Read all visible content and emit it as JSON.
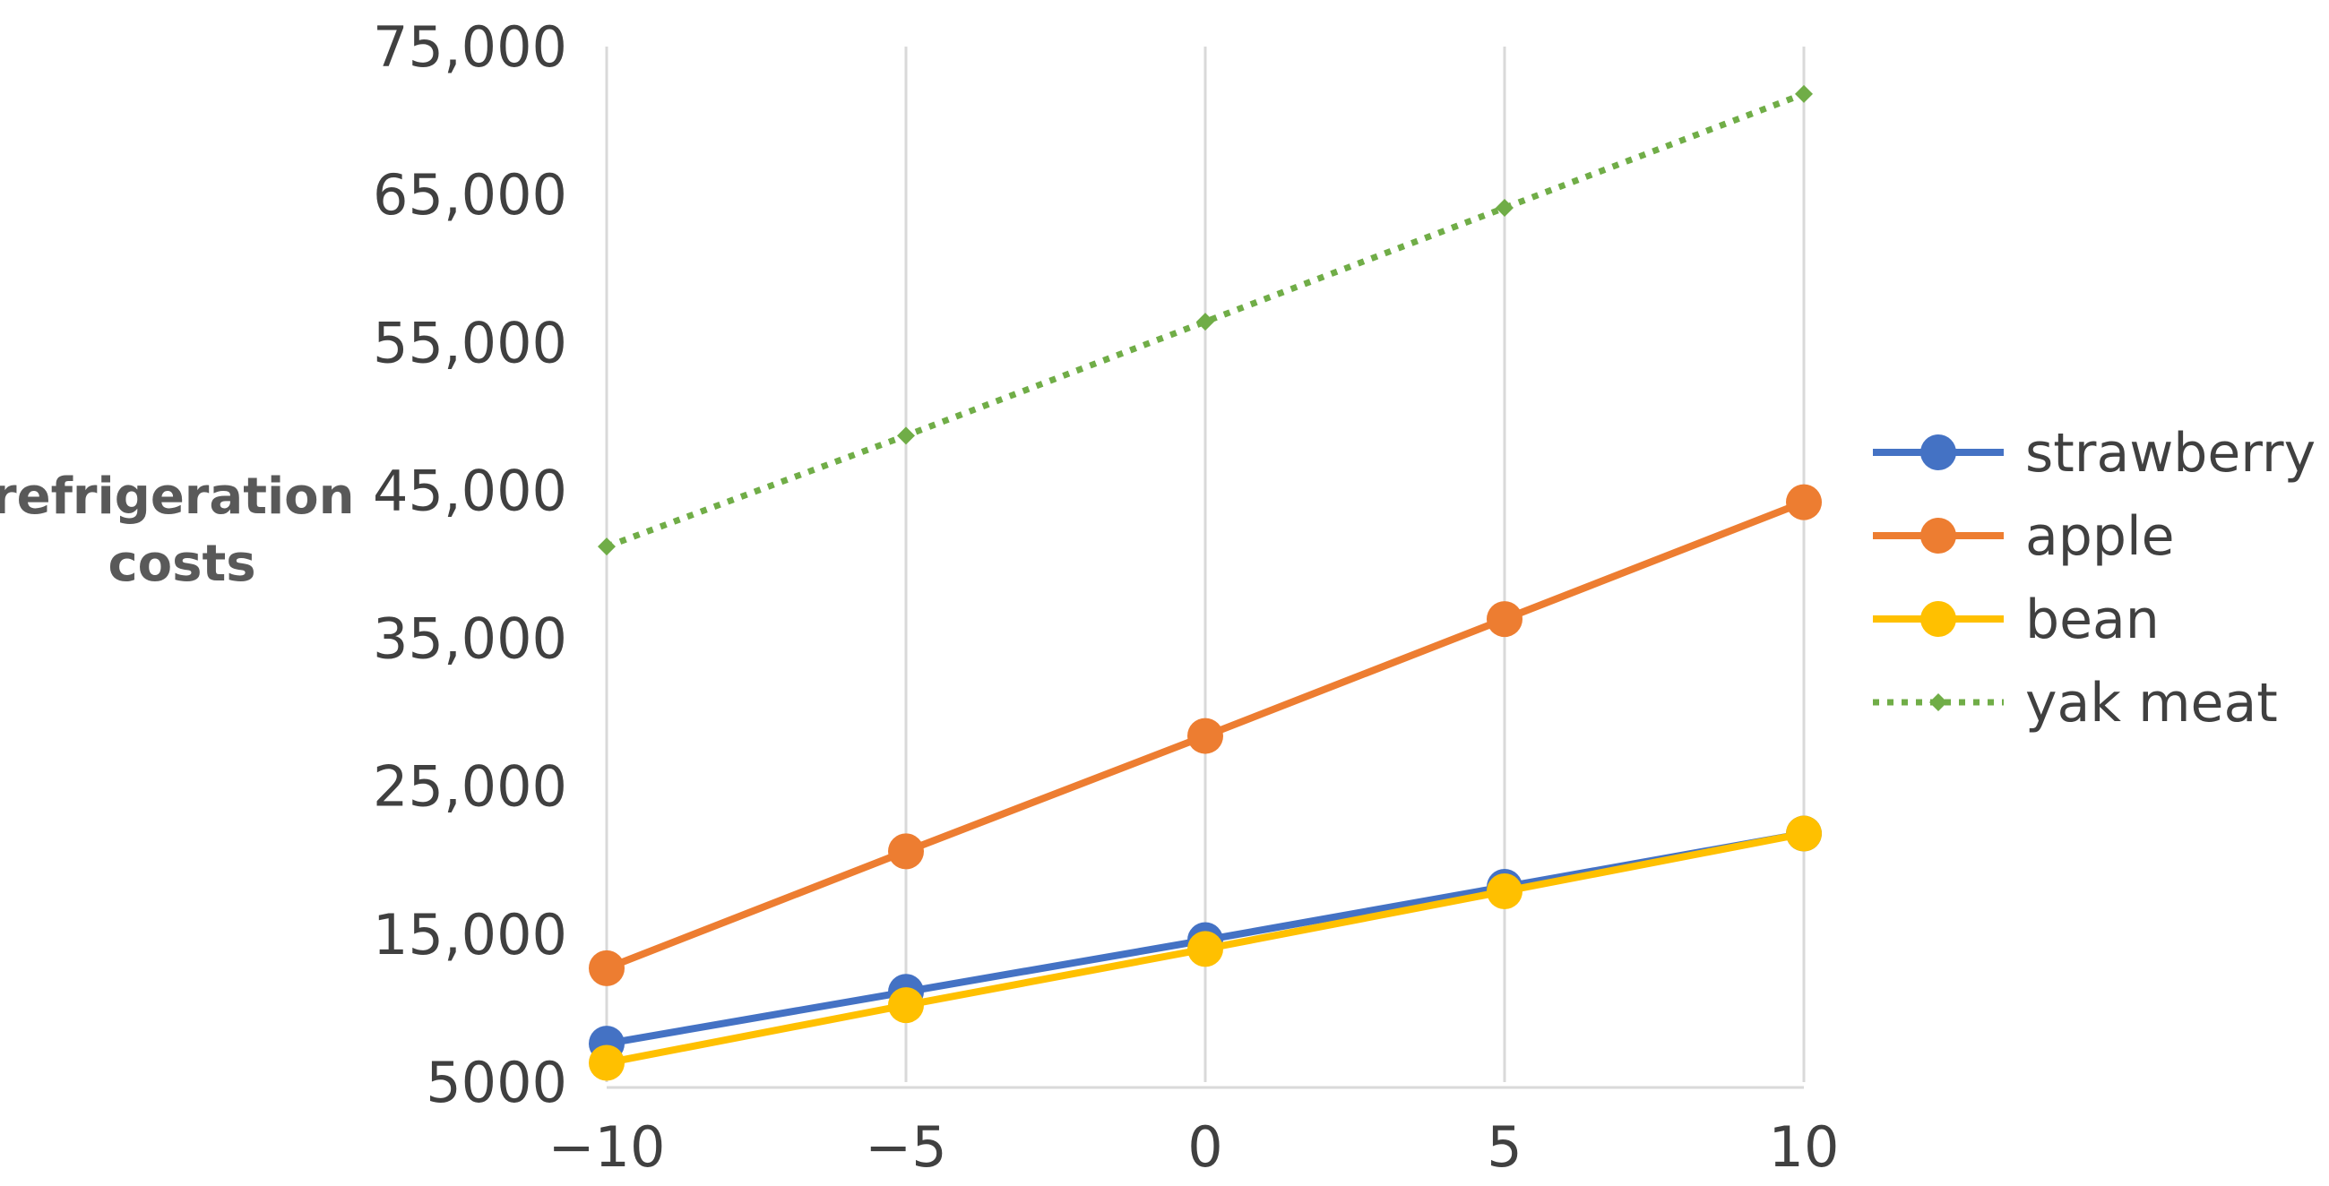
{
  "chart_data": {
    "type": "line",
    "title": "",
    "xlabel": "",
    "ylabel_lines": [
      "refrigeration",
      "costs"
    ],
    "x": [
      -10,
      -5,
      0,
      5,
      10
    ],
    "x_tick_labels": [
      "−10",
      "−5",
      "0",
      "5",
      "10"
    ],
    "xlim": [
      -10,
      10
    ],
    "ylim": [
      5000,
      75000
    ],
    "y_ticks": [
      5000,
      15000,
      25000,
      35000,
      45000,
      55000,
      65000,
      75000
    ],
    "y_tick_labels": [
      "5000",
      "15,000",
      "25,000",
      "35,000",
      "45,000",
      "55,000",
      "65,000",
      "75,000"
    ],
    "grid": "vertical",
    "legend_position": "right",
    "series": [
      {
        "name": "strawberry",
        "color": "#4472C4",
        "marker": "circle",
        "line_style": "solid",
        "values": [
          7600,
          11100,
          14600,
          18200,
          21800
        ]
      },
      {
        "name": "apple",
        "color": "#ED7D31",
        "marker": "circle",
        "line_style": "solid",
        "values": [
          12700,
          20600,
          28400,
          36300,
          44200
        ]
      },
      {
        "name": "bean",
        "color": "#FFC000",
        "marker": "circle",
        "line_style": "solid",
        "values": [
          6300,
          10200,
          14000,
          17900,
          21800
        ]
      },
      {
        "name": "yak meat",
        "color": "#70AD47",
        "marker": "diamond",
        "line_style": "dotted",
        "values": [
          41200,
          48700,
          56400,
          64100,
          71800
        ]
      }
    ]
  }
}
